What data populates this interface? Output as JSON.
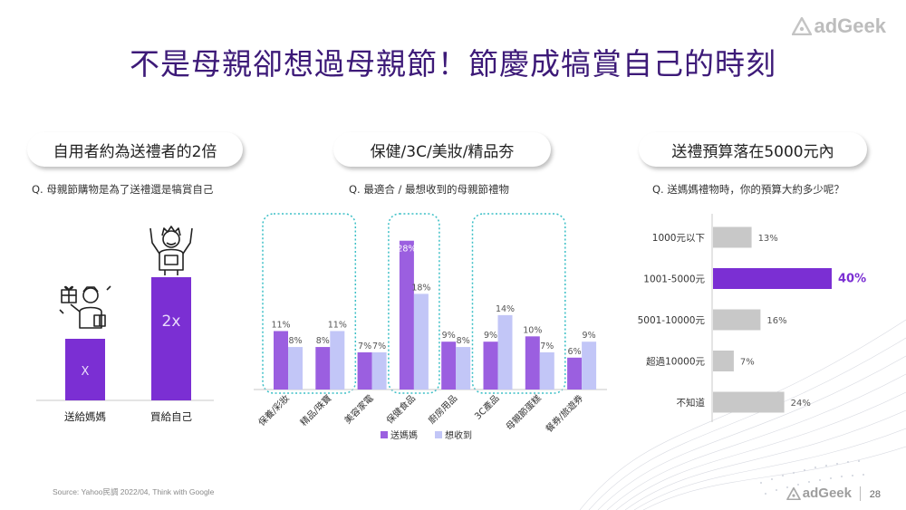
{
  "title": "不是母親卻想過母親節！節慶成犒賞自己的時刻",
  "brand": {
    "name": "adGeek",
    "page_number": "28"
  },
  "source": "Source: Yahoo民調 2022/04, Think with Google",
  "colors": {
    "purple": "#7b2fd3",
    "mid_purple": "#9b5fe0",
    "light_lavender": "#c2c6f7",
    "grey_bar": "#c8c8c8",
    "highlight_border": "#3bbfc6",
    "title_color": "#3d1a78"
  },
  "panels": [
    {
      "heading": "自用者約為送禮者的2倍",
      "question": "Q. 母親節購物是為了送禮還是犒賞自己"
    },
    {
      "heading": "保健/3C/美妝/精品夯",
      "question": "Q. 最適合 / 最想收到的母親節禮物"
    },
    {
      "heading": "送禮預算落在5000元內",
      "question": "Q. 送媽媽禮物時，你的預算大約多少呢？"
    }
  ],
  "chart_data": [
    {
      "type": "bar",
      "categories": [
        "送給媽媽",
        "買給自己"
      ],
      "values": [
        1,
        2
      ],
      "bar_labels": [
        "X",
        "2x"
      ],
      "icons": [
        "gift-giver-icon",
        "celebrating-person-icon"
      ]
    },
    {
      "type": "bar",
      "categories": [
        "保養/彩妝",
        "精品/珠寶",
        "美容家電",
        "保健食品",
        "廚房用品",
        "3C產品",
        "母親節蛋糕",
        "餐券/旅遊券"
      ],
      "series": [
        {
          "name": "送媽媽",
          "values": [
            11,
            8,
            7,
            28,
            9,
            9,
            10,
            6
          ]
        },
        {
          "name": "想收到",
          "values": [
            8,
            11,
            7,
            18,
            8,
            14,
            7,
            9
          ]
        }
      ],
      "ylim": [
        0,
        30
      ],
      "highlight_groups": [
        [
          0,
          1
        ],
        [
          3
        ],
        [
          5,
          6
        ]
      ]
    },
    {
      "type": "bar",
      "orientation": "horizontal",
      "categories": [
        "1000元以下",
        "1001-5000元",
        "5001-10000元",
        "超過10000元",
        "不知道"
      ],
      "values": [
        13,
        40,
        16,
        7,
        24
      ],
      "highlight_index": 1,
      "xlim": [
        0,
        40
      ]
    }
  ]
}
